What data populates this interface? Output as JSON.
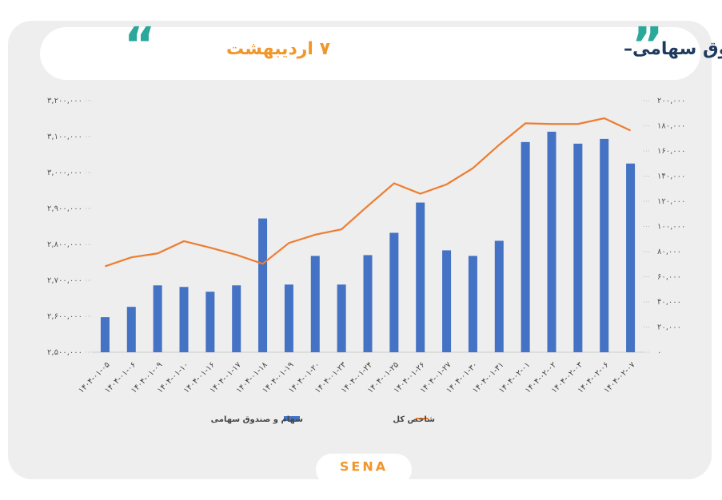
{
  "chart_data": {
    "type": "bar_line",
    "title": "ارزش معاملات خرد سهام و صندوق سهامی–",
    "subtitle": "۷ اردیبهشت",
    "logo": "SENA",
    "categories": [
      "۱۴۰۴-۰۱-۰۵",
      "۱۴۰۴-۰۱-۰۶",
      "۱۴۰۴-۰۱-۰۹",
      "۱۴۰۴-۰۱-۱۰",
      "۱۴۰۴-۰۱-۱۶",
      "۱۴۰۴-۰۱-۱۷",
      "۱۴۰۴-۰۱-۱۸",
      "۱۴۰۴-۰۱-۱۹",
      "۱۴۰۴-۰۱-۲۰",
      "۱۴۰۴-۰۱-۲۳",
      "۱۴۰۴-۰۱-۲۴",
      "۱۴۰۴-۰۱-۲۵",
      "۱۴۰۴-۰۱-۲۶",
      "۱۴۰۴-۰۱-۲۷",
      "۱۴۰۴-۰۱-۳۰",
      "۱۴۰۴-۰۱-۳۱",
      "۱۴۰۴-۰۲-۰۱",
      "۱۴۰۴-۰۲-۰۲",
      "۱۴۰۴-۰۲-۰۳",
      "۱۴۰۴-۰۲-۰۶",
      "۱۴۰۴-۰۲-۰۷"
    ],
    "series": [
      {
        "name": "سهام و صندوق سهامی",
        "type": "bar",
        "axis": "y2",
        "color": "#4472c4",
        "values": [
          27850,
          36080,
          53160,
          51900,
          48100,
          53160,
          106330,
          53800,
          76580,
          53800,
          77200,
          94940,
          118990,
          81000,
          76580,
          88600,
          167090,
          175300,
          165800,
          169600,
          150000
        ]
      },
      {
        "name": "شاخص کل",
        "type": "line",
        "axis": "y",
        "color": "#ed7d31",
        "values": [
          2739000,
          2764000,
          2775000,
          2809000,
          2791000,
          2771000,
          2746000,
          2804000,
          2827000,
          2842000,
          2907000,
          2970000,
          2941000,
          2967000,
          3012000,
          3077000,
          3137000,
          3135000,
          3135000,
          3151000,
          3117000
        ]
      }
    ],
    "ylim": [
      2500000,
      3200000
    ],
    "yticks": [
      {
        "value": 2500000,
        "label": "۲,۵۰۰,۰۰۰"
      },
      {
        "value": 2600000,
        "label": "۲,۶۰۰,۰۰۰"
      },
      {
        "value": 2700000,
        "label": "۲,۷۰۰,۰۰۰"
      },
      {
        "value": 2800000,
        "label": "۲,۸۰۰,۰۰۰"
      },
      {
        "value": 2900000,
        "label": "۲,۹۰۰,۰۰۰"
      },
      {
        "value": 3000000,
        "label": "۳,۰۰۰,۰۰۰"
      },
      {
        "value": 3100000,
        "label": "۳,۱۰۰,۰۰۰"
      },
      {
        "value": 3200000,
        "label": "۳,۲۰۰,۰۰۰"
      }
    ],
    "y2lim": [
      0,
      200000
    ],
    "y2ticks": [
      {
        "value": 0,
        "label": "۰"
      },
      {
        "value": 20000,
        "label": "۲۰,۰۰۰"
      },
      {
        "value": 40000,
        "label": "۴۰,۰۰۰"
      },
      {
        "value": 60000,
        "label": "۶۰,۰۰۰"
      },
      {
        "value": 80000,
        "label": "۸۰,۰۰۰"
      },
      {
        "value": 100000,
        "label": "۱۰۰,۰۰۰"
      },
      {
        "value": 120000,
        "label": "۱۲۰,۰۰۰"
      },
      {
        "value": 140000,
        "label": "۱۴۰,۰۰۰"
      },
      {
        "value": 160000,
        "label": "۱۶۰,۰۰۰"
      },
      {
        "value": 180000,
        "label": "۱۸۰,۰۰۰"
      },
      {
        "value": 200000,
        "label": "۲۰۰,۰۰۰"
      }
    ],
    "grid": false,
    "legend": "bottom"
  }
}
